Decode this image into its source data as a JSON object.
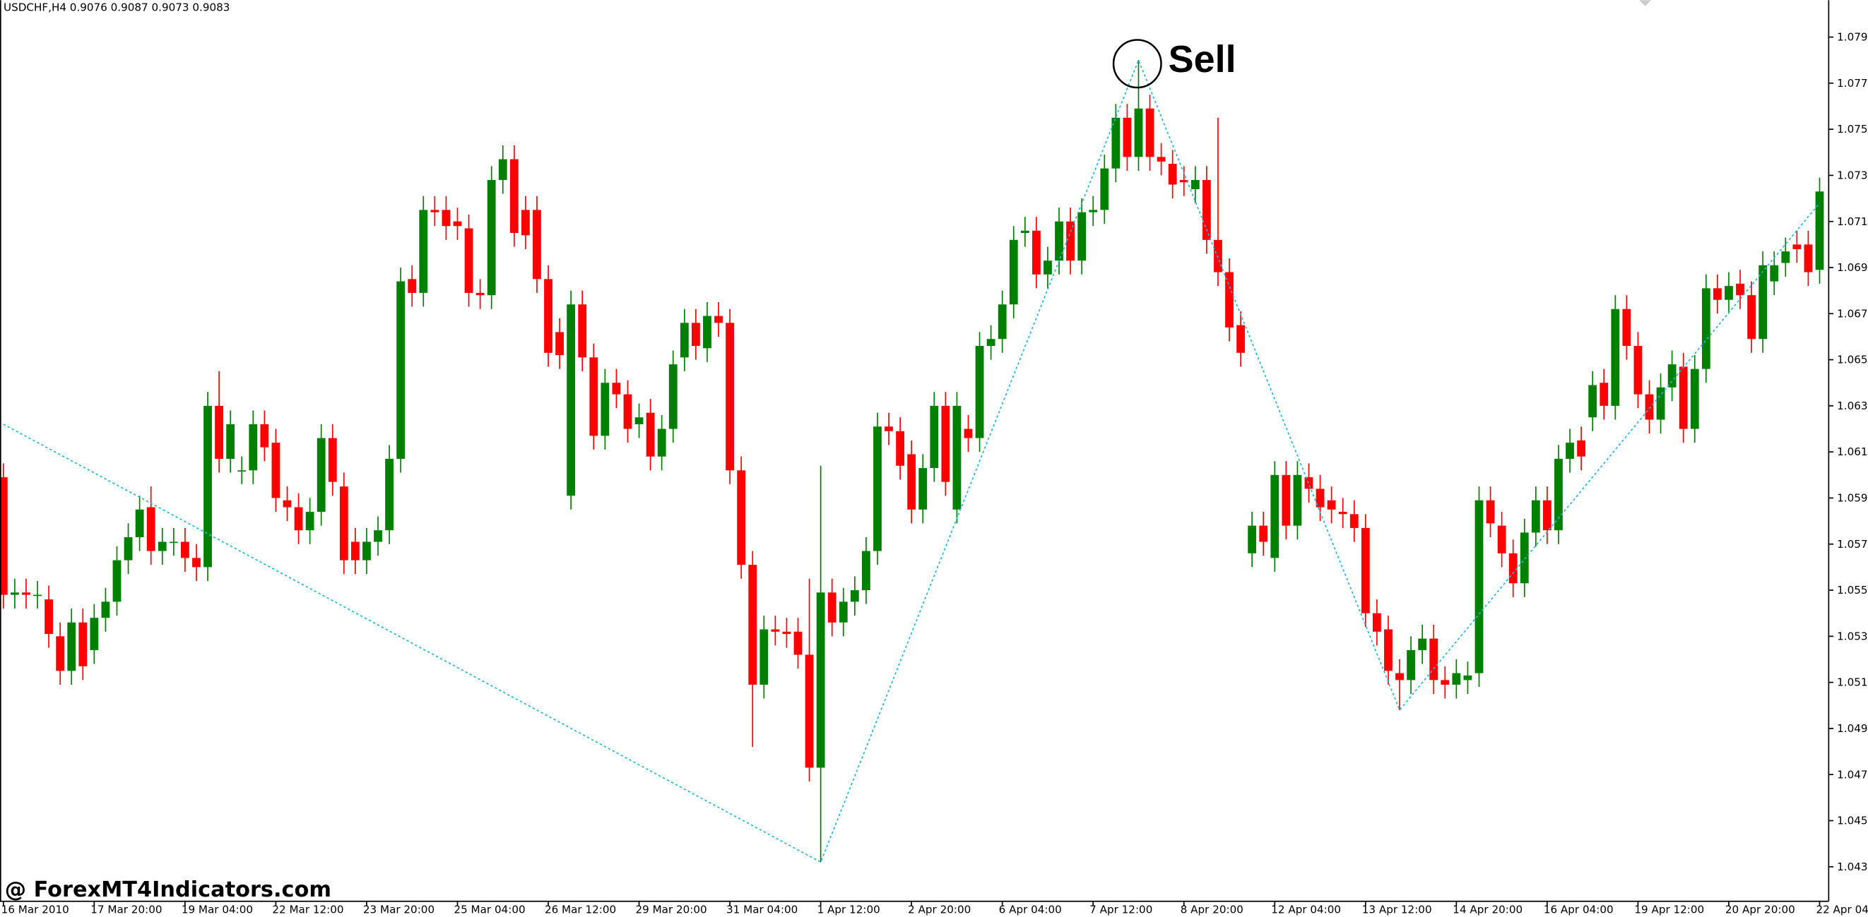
{
  "chart_data": {
    "type": "candlestick",
    "title": "USDCHF,H4 0.9076 0.9087 0.9073 0.9083",
    "watermark": "@ ForexMT4Indicators.com",
    "signal": "Sell",
    "up_color": "#008000",
    "down_color": "#ff0000",
    "zigzag_color": "#1fb8e0",
    "xlim": [
      -0.3,
      160.8
    ],
    "ylim": [
      1.042,
      1.0811
    ],
    "yticks": [
      1.0795,
      1.0775,
      1.0755,
      1.0735,
      1.0715,
      1.0695,
      1.0675,
      1.0655,
      1.0635,
      1.0615,
      1.0595,
      1.0575,
      1.0555,
      1.0535,
      1.0515,
      1.0495,
      1.0475,
      1.0455,
      1.0435
    ],
    "xticks": [
      {
        "value": 0,
        "label": "16 Mar 2010"
      },
      {
        "value": 8,
        "label": "17 Mar 20:00"
      },
      {
        "value": 16,
        "label": "19 Mar 04:00"
      },
      {
        "value": 24,
        "label": "22 Mar 12:00"
      },
      {
        "value": 32,
        "label": "23 Mar 20:00"
      },
      {
        "value": 40,
        "label": "25 Mar 04:00"
      },
      {
        "value": 48,
        "label": "26 Mar 12:00"
      },
      {
        "value": 56,
        "label": "29 Mar 20:00"
      },
      {
        "value": 64,
        "label": "31 Mar 04:00"
      },
      {
        "value": 72,
        "label": "1 Apr 12:00"
      },
      {
        "value": 80,
        "label": "2 Apr 20:00"
      },
      {
        "value": 88,
        "label": "6 Apr 04:00"
      },
      {
        "value": 96,
        "label": "7 Apr 12:00"
      },
      {
        "value": 104,
        "label": "8 Apr 20:00"
      },
      {
        "value": 112,
        "label": "12 Apr 04:00"
      },
      {
        "value": 120,
        "label": "13 Apr 12:00"
      },
      {
        "value": 128,
        "label": "14 Apr 20:00"
      },
      {
        "value": 136,
        "label": "16 Apr 04:00"
      },
      {
        "value": 144,
        "label": "19 Apr 12:00"
      },
      {
        "value": 152,
        "label": "20 Apr 20:00"
      },
      {
        "value": 160,
        "label": "22 Apr 04:00"
      }
    ],
    "open": [
      1.0604,
      1.0553,
      1.0554,
      1.0553,
      1.0551,
      1.0535,
      1.052,
      1.0541,
      1.0529,
      1.0543,
      1.055,
      1.0568,
      1.0578,
      1.0591,
      1.0572,
      1.0576,
      1.0576,
      1.0569,
      1.0565,
      1.0635,
      1.0612,
      1.0607,
      1.0607,
      1.0627,
      1.0619,
      1.0594,
      1.0591,
      1.0581,
      1.0589,
      1.0621,
      1.06,
      1.0576,
      1.0568,
      1.0576,
      1.0581,
      1.0612,
      1.069,
      1.0684,
      1.072,
      1.072,
      1.0715,
      1.0712,
      1.0684,
      1.0683,
      1.0733,
      1.0742,
      1.072,
      1.072,
      1.069,
      1.0667,
      1.0596,
      1.0679,
      1.0656,
      1.0622,
      1.0645,
      1.064,
      1.0627,
      1.0632,
      1.0613,
      1.0625,
      1.0656,
      1.0671,
      1.066,
      1.0674,
      1.0671,
      1.0607,
      1.0566,
      1.0514,
      1.0538,
      1.0537,
      1.0537,
      1.0527,
      1.0478,
      1.0554,
      1.0541,
      1.055,
      1.0555,
      1.0572,
      1.0626,
      1.0624,
      1.0614,
      1.059,
      1.0608,
      1.0635,
      1.059,
      1.0625,
      1.0621,
      1.0661,
      1.0664,
      1.0679,
      1.071,
      1.0711,
      1.0692,
      1.0698,
      1.0715,
      1.0698,
      1.0719,
      1.072,
      1.0738,
      1.076,
      1.0743,
      1.0764,
      1.0743,
      1.074,
      1.0733,
      1.0729,
      1.0733,
      1.0707,
      1.0693,
      1.067,
      1.0571,
      1.0583,
      1.0569,
      1.0605,
      1.0583,
      1.0604,
      1.0599,
      1.0594,
      1.0589,
      1.0588,
      1.0582,
      1.0545,
      1.0538,
      1.0519,
      1.0516,
      1.0529,
      1.0534,
      1.0516,
      1.0514,
      1.0516,
      1.0519,
      1.0594,
      1.0583,
      1.0571,
      1.0558,
      1.058,
      1.0594,
      1.0581,
      1.0612,
      1.062,
      1.063,
      1.0645,
      1.0635,
      1.0677,
      1.0661,
      1.064,
      1.0629,
      1.0643,
      1.0652,
      1.0625,
      1.0651,
      1.0686,
      1.0681,
      1.0688,
      1.0683,
      1.0664,
      1.0689,
      1.0697,
      1.0705,
      1.0705,
      1.0694
    ],
    "high": [
      1.061,
      1.056,
      1.056,
      1.0559,
      1.0557,
      1.0541,
      1.0547,
      1.0547,
      1.0549,
      1.0556,
      1.0574,
      1.0584,
      1.0596,
      1.06,
      1.0582,
      1.0582,
      1.0582,
      1.0575,
      1.0641,
      1.065,
      1.0633,
      1.0613,
      1.0633,
      1.0633,
      1.0625,
      1.06,
      1.0597,
      1.0595,
      1.0627,
      1.0627,
      1.0606,
      1.0582,
      1.0582,
      1.0587,
      1.0618,
      1.0695,
      1.0696,
      1.0726,
      1.0726,
      1.0726,
      1.0721,
      1.0718,
      1.069,
      1.0739,
      1.0748,
      1.0748,
      1.0726,
      1.0726,
      1.0696,
      1.0673,
      1.0685,
      1.0685,
      1.0662,
      1.0651,
      1.0651,
      1.0646,
      1.0636,
      1.0638,
      1.0631,
      1.0659,
      1.0677,
      1.0677,
      1.068,
      1.068,
      1.0677,
      1.0613,
      1.0572,
      1.0544,
      1.0544,
      1.0543,
      1.0543,
      1.056,
      1.0609,
      1.056,
      1.0556,
      1.0561,
      1.0578,
      1.0632,
      1.0632,
      1.063,
      1.062,
      1.0614,
      1.0641,
      1.0641,
      1.0641,
      1.0631,
      1.0667,
      1.067,
      1.0685,
      1.0713,
      1.0717,
      1.0717,
      1.0704,
      1.0721,
      1.0721,
      1.0725,
      1.0726,
      1.0744,
      1.0766,
      1.0766,
      1.0785,
      1.077,
      1.0749,
      1.0746,
      1.0739,
      1.0739,
      1.0739,
      1.076,
      1.0699,
      1.0676,
      1.0589,
      1.0589,
      1.0611,
      1.0611,
      1.0611,
      1.061,
      1.0605,
      1.06,
      1.0595,
      1.0594,
      1.0588,
      1.0551,
      1.0544,
      1.0525,
      1.0535,
      1.054,
      1.054,
      1.0522,
      1.0525,
      1.0524,
      1.06,
      1.06,
      1.0589,
      1.0577,
      1.0586,
      1.06,
      1.06,
      1.0618,
      1.0625,
      1.0626,
      1.065,
      1.0651,
      1.0683,
      1.0683,
      1.0667,
      1.0646,
      1.0649,
      1.0659,
      1.0658,
      1.0657,
      1.0692,
      1.0692,
      1.0693,
      1.0694,
      1.0689,
      1.0702,
      1.0702,
      1.0708,
      1.0711,
      1.0711,
      1.0734
    ],
    "low": [
      1.0547,
      1.0547,
      1.0547,
      1.0547,
      1.053,
      1.0514,
      1.0514,
      1.0516,
      1.0523,
      1.0537,
      1.0544,
      1.0562,
      1.0572,
      1.0566,
      1.0566,
      1.057,
      1.0563,
      1.0559,
      1.0559,
      1.0606,
      1.0606,
      1.0601,
      1.0601,
      1.0611,
      1.0589,
      1.0585,
      1.0575,
      1.0575,
      1.0583,
      1.0596,
      1.0562,
      1.0562,
      1.0562,
      1.057,
      1.0575,
      1.0606,
      1.0678,
      1.0678,
      1.0713,
      1.0707,
      1.0707,
      1.0678,
      1.0677,
      1.0677,
      1.0727,
      1.0704,
      1.0703,
      1.0684,
      1.0652,
      1.0651,
      1.059,
      1.065,
      1.0616,
      1.0616,
      1.0634,
      1.0619,
      1.0621,
      1.0607,
      1.0607,
      1.0619,
      1.065,
      1.0655,
      1.0654,
      1.0665,
      1.0601,
      1.056,
      1.0487,
      1.0508,
      1.0531,
      1.053,
      1.0521,
      1.0472,
      1.0437,
      1.0535,
      1.0535,
      1.0544,
      1.0549,
      1.0566,
      1.0618,
      1.0603,
      1.0584,
      1.0584,
      1.0602,
      1.0596,
      1.0584,
      1.0615,
      1.0615,
      1.0655,
      1.0658,
      1.0673,
      1.0704,
      1.0686,
      1.0686,
      1.0692,
      1.0692,
      1.0692,
      1.0713,
      1.0714,
      1.0732,
      1.0737,
      1.0737,
      1.0737,
      1.0735,
      1.0725,
      1.0726,
      1.0723,
      1.0701,
      1.0687,
      1.0663,
      1.0652,
      1.0565,
      1.057,
      1.0563,
      1.0577,
      1.0577,
      1.0593,
      1.0585,
      1.0584,
      1.0582,
      1.0576,
      1.0539,
      1.0531,
      1.0514,
      1.0503,
      1.051,
      1.0523,
      1.051,
      1.0508,
      1.0508,
      1.051,
      1.0513,
      1.0578,
      1.0565,
      1.0552,
      1.0552,
      1.0574,
      1.0575,
      1.0575,
      1.0606,
      1.0607,
      1.0624,
      1.0629,
      1.0629,
      1.0655,
      1.0634,
      1.0623,
      1.0623,
      1.0637,
      1.0619,
      1.0619,
      1.0645,
      1.0675,
      1.0675,
      1.0677,
      1.0658,
      1.0658,
      1.0683,
      1.0691,
      1.0697,
      1.0687,
      1.0688
    ],
    "close": [
      1.0553,
      1.0554,
      1.0553,
      1.0553,
      1.0536,
      1.052,
      1.0541,
      1.0522,
      1.0543,
      1.055,
      1.0568,
      1.0578,
      1.059,
      1.0572,
      1.0576,
      1.0576,
      1.0569,
      1.0565,
      1.0635,
      1.0612,
      1.0627,
      1.0607,
      1.0627,
      1.0617,
      1.0595,
      1.0591,
      1.0581,
      1.0589,
      1.0621,
      1.0602,
      1.0568,
      1.0568,
      1.0576,
      1.0581,
      1.0612,
      1.0689,
      1.0684,
      1.072,
      1.0719,
      1.0713,
      1.0713,
      1.0684,
      1.0683,
      1.0733,
      1.0742,
      1.071,
      1.0709,
      1.069,
      1.0658,
      1.0657,
      1.0679,
      1.0656,
      1.0622,
      1.0645,
      1.064,
      1.0625,
      1.063,
      1.0613,
      1.0625,
      1.0653,
      1.0671,
      1.0661,
      1.0674,
      1.0671,
      1.0607,
      1.0566,
      1.0514,
      1.0538,
      1.0537,
      1.0536,
      1.0527,
      1.0478,
      1.0554,
      1.0541,
      1.055,
      1.0555,
      1.0572,
      1.0626,
      1.0624,
      1.0609,
      1.059,
      1.0608,
      1.0635,
      1.0602,
      1.0635,
      1.0621,
      1.0661,
      1.0664,
      1.0679,
      1.0707,
      1.0711,
      1.0692,
      1.0698,
      1.0715,
      1.0698,
      1.0719,
      1.072,
      1.0738,
      1.076,
      1.0743,
      1.0764,
      1.0743,
      1.0741,
      1.0731,
      1.0732,
      1.0733,
      1.0707,
      1.0693,
      1.0669,
      1.0658,
      1.0583,
      1.0576,
      1.0605,
      1.0583,
      1.0605,
      1.0599,
      1.0591,
      1.059,
      1.0588,
      1.0582,
      1.0545,
      1.0537,
      1.052,
      1.0516,
      1.0529,
      1.0534,
      1.0516,
      1.0514,
      1.0519,
      1.0518,
      1.0594,
      1.0584,
      1.0571,
      1.0558,
      1.058,
      1.0594,
      1.0581,
      1.0612,
      1.0619,
      1.0613,
      1.0644,
      1.0635,
      1.0677,
      1.0661,
      1.064,
      1.0629,
      1.0643,
      1.0653,
      1.0625,
      1.0651,
      1.0686,
      1.0681,
      1.0687,
      1.0683,
      1.0664,
      1.0696,
      1.0696,
      1.0702,
      1.0703,
      1.0693,
      1.0728
    ],
    "zigzag": {
      "x": [
        0,
        72,
        100,
        123,
        160
      ],
      "values": [
        1.0627,
        1.0437,
        1.0785,
        1.0503,
        1.0723
      ]
    }
  }
}
